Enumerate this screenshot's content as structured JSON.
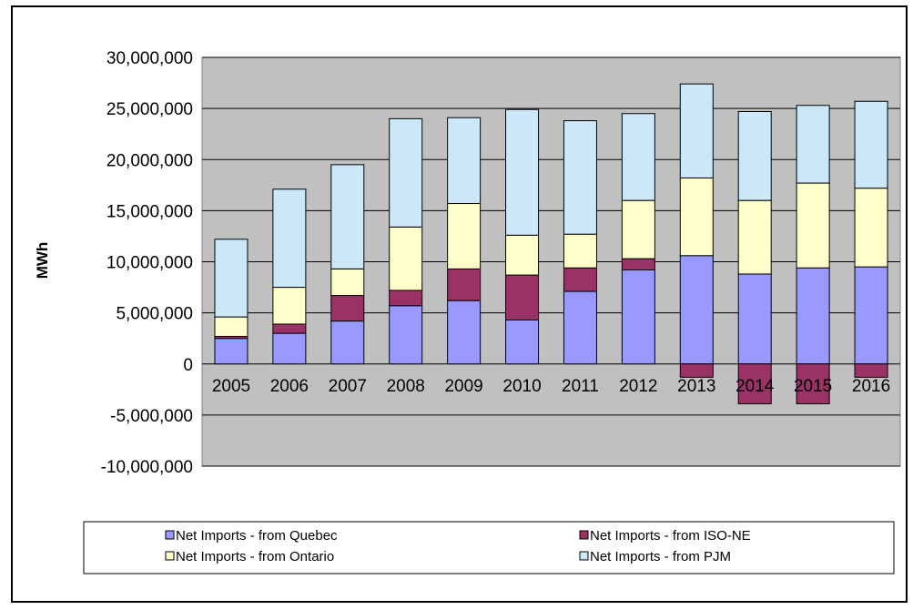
{
  "chart_data": {
    "type": "bar",
    "stacked": true,
    "categories": [
      "2005",
      "2006",
      "2007",
      "2008",
      "2009",
      "2010",
      "2011",
      "2012",
      "2013",
      "2014",
      "2015",
      "2016"
    ],
    "series": [
      {
        "name": "Net Imports - from Quebec",
        "color": "#9999ff",
        "values": [
          2500000,
          3000000,
          4200000,
          5700000,
          6200000,
          4300000,
          7100000,
          9200000,
          10600000,
          8800000,
          9400000,
          9500000
        ]
      },
      {
        "name": "Net Imports - from ISO-NE",
        "color": "#993366",
        "values": [
          200000,
          900000,
          2500000,
          1500000,
          3100000,
          4400000,
          2300000,
          1100000,
          -1300000,
          -3900000,
          -3900000,
          -1300000
        ]
      },
      {
        "name": "Net Imports - from Ontario",
        "color": "#ffffcc",
        "values": [
          1900000,
          3600000,
          2600000,
          6200000,
          6400000,
          3900000,
          3300000,
          5700000,
          7600000,
          7200000,
          8300000,
          7700000
        ]
      },
      {
        "name": "Net Imports - from PJM",
        "color": "#cce8f8",
        "values": [
          7600000,
          9600000,
          10200000,
          10600000,
          8400000,
          12300000,
          11100000,
          8500000,
          9200000,
          8700000,
          7600000,
          8500000
        ]
      }
    ],
    "xlabel": "",
    "ylabel": "MWh",
    "ylim": [
      -10000000,
      30000000
    ],
    "yticks": [
      "30,000,000",
      "25,000,000",
      "20,000,000",
      "15,000,000",
      "10,000,000",
      "5,000,000",
      "0",
      "-5,000,000",
      "-10,000,000"
    ],
    "ytick_values": [
      30000000,
      25000000,
      20000000,
      15000000,
      10000000,
      5000000,
      0,
      -5000000,
      -10000000
    ],
    "grid": true,
    "plot_background": "#c0c0c0",
    "legend_position": "bottom",
    "legend_order": [
      "Net Imports - from Quebec",
      "Net Imports - from ISO-NE",
      "Net Imports - from Ontario",
      "Net Imports - from PJM"
    ]
  }
}
